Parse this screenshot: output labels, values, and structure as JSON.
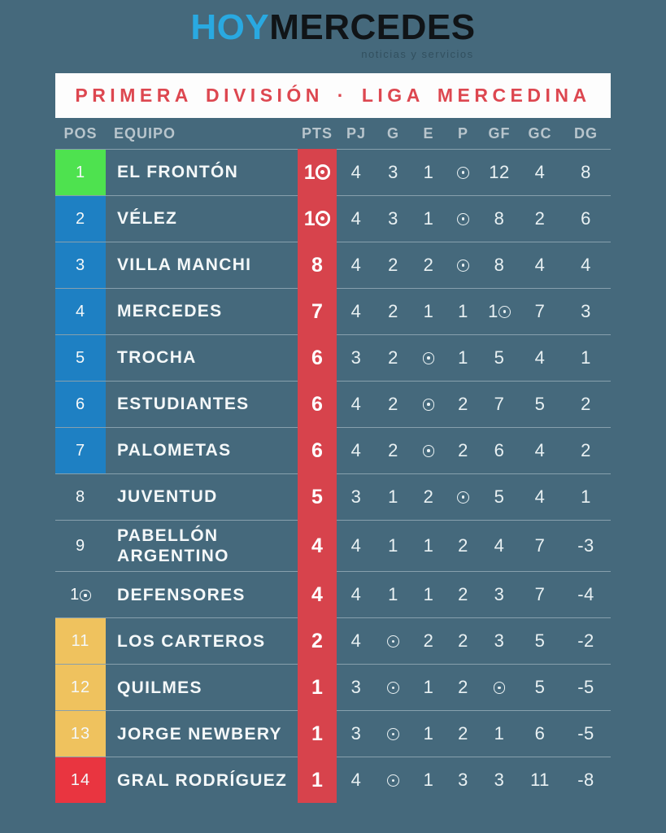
{
  "masthead": {
    "brand_primary": "HOY",
    "brand_secondary": "MERCEDES",
    "tagline": "noticias y servicios"
  },
  "banner": {
    "title": "PRIMERA DIVISIÓN · LIGA MERCEDINA"
  },
  "colors": {
    "background": "#45697C",
    "banner_background": "#FDFDFD",
    "banner_text": "#DD4750",
    "points_band": "#D7434C",
    "logo_blue": "#29A9E1",
    "logo_dark": "#101417",
    "header_text": "#B8C5CC",
    "body_text": "#F4F8F9"
  },
  "chart_data": {
    "type": "table",
    "title": "PRIMERA DIVISIÓN · LIGA MERCEDINA",
    "columns": [
      "POS",
      "EQUIPO",
      "PTS",
      "PJ",
      "G",
      "E",
      "P",
      "GF",
      "GC",
      "DG"
    ],
    "zones": {
      "green": "#4EE24F",
      "blue": "#1E80C3",
      "none": "transparent",
      "yellow": "#EFC25E",
      "red": "#E93540"
    },
    "rows": [
      {
        "pos": 1,
        "equipo": "EL FRONTÓN",
        "pts": 10,
        "pj": 4,
        "g": 3,
        "e": 1,
        "p": 0,
        "gf": 12,
        "gc": 4,
        "dg": 8,
        "zone": "green"
      },
      {
        "pos": 2,
        "equipo": "VÉLEZ",
        "pts": 10,
        "pj": 4,
        "g": 3,
        "e": 1,
        "p": 0,
        "gf": 8,
        "gc": 2,
        "dg": 6,
        "zone": "blue"
      },
      {
        "pos": 3,
        "equipo": "VILLA MANCHI",
        "pts": 8,
        "pj": 4,
        "g": 2,
        "e": 2,
        "p": 0,
        "gf": 8,
        "gc": 4,
        "dg": 4,
        "zone": "blue"
      },
      {
        "pos": 4,
        "equipo": "MERCEDES",
        "pts": 7,
        "pj": 4,
        "g": 2,
        "e": 1,
        "p": 1,
        "gf": 10,
        "gc": 7,
        "dg": 3,
        "zone": "blue"
      },
      {
        "pos": 5,
        "equipo": "TROCHA",
        "pts": 6,
        "pj": 3,
        "g": 2,
        "e": 0,
        "p": 1,
        "gf": 5,
        "gc": 4,
        "dg": 1,
        "zone": "blue"
      },
      {
        "pos": 6,
        "equipo": "ESTUDIANTES",
        "pts": 6,
        "pj": 4,
        "g": 2,
        "e": 0,
        "p": 2,
        "gf": 7,
        "gc": 5,
        "dg": 2,
        "zone": "blue"
      },
      {
        "pos": 7,
        "equipo": "PALOMETAS",
        "pts": 6,
        "pj": 4,
        "g": 2,
        "e": 0,
        "p": 2,
        "gf": 6,
        "gc": 4,
        "dg": 2,
        "zone": "blue"
      },
      {
        "pos": 8,
        "equipo": "JUVENTUD",
        "pts": 5,
        "pj": 3,
        "g": 1,
        "e": 2,
        "p": 0,
        "gf": 5,
        "gc": 4,
        "dg": 1,
        "zone": "none"
      },
      {
        "pos": 9,
        "equipo": "PABELLÓN ARGENTINO",
        "pts": 4,
        "pj": 4,
        "g": 1,
        "e": 1,
        "p": 2,
        "gf": 4,
        "gc": 7,
        "dg": -3,
        "zone": "none"
      },
      {
        "pos": 10,
        "equipo": "DEFENSORES",
        "pts": 4,
        "pj": 4,
        "g": 1,
        "e": 1,
        "p": 2,
        "gf": 3,
        "gc": 7,
        "dg": -4,
        "zone": "none"
      },
      {
        "pos": 11,
        "equipo": "LOS CARTEROS",
        "pts": 2,
        "pj": 4,
        "g": 0,
        "e": 2,
        "p": 2,
        "gf": 3,
        "gc": 5,
        "dg": -2,
        "zone": "yellow"
      },
      {
        "pos": 12,
        "equipo": "QUILMES",
        "pts": 1,
        "pj": 3,
        "g": 0,
        "e": 1,
        "p": 2,
        "gf": 0,
        "gc": 5,
        "dg": -5,
        "zone": "yellow"
      },
      {
        "pos": 13,
        "equipo": "JORGE NEWBERY",
        "pts": 1,
        "pj": 3,
        "g": 0,
        "e": 1,
        "p": 2,
        "gf": 1,
        "gc": 6,
        "dg": -5,
        "zone": "yellow"
      },
      {
        "pos": 14,
        "equipo": "GRAL RODRÍGUEZ",
        "pts": 1,
        "pj": 4,
        "g": 0,
        "e": 1,
        "p": 3,
        "gf": 3,
        "gc": 11,
        "dg": -8,
        "zone": "red"
      }
    ]
  }
}
